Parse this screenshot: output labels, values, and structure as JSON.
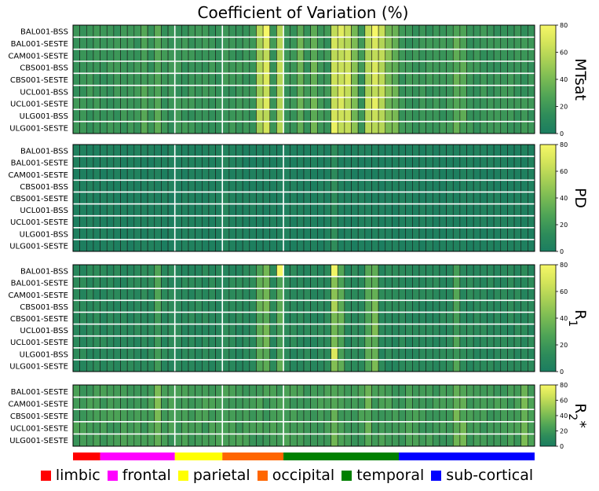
{
  "chart_data": {
    "type": "heatmap",
    "title": "Coefficient of Variation (%)",
    "n_regions": 68,
    "colormap": [
      "#1b7d60",
      "#2e8c5a",
      "#4da356",
      "#78ba54",
      "#a6cf55",
      "#d3e45a",
      "#f6f767"
    ],
    "colorbar": {
      "min": 0,
      "max": 80,
      "ticks": [
        "0",
        "20",
        "40",
        "60",
        "80"
      ]
    },
    "region_groups": [
      {
        "name": "limbic",
        "color": "#ff0000",
        "start": 0,
        "count": 4
      },
      {
        "name": "frontal",
        "color": "#ff00ff",
        "start": 4,
        "count": 11
      },
      {
        "name": "parietal",
        "color": "#ffff00",
        "start": 15,
        "count": 7
      },
      {
        "name": "occipital",
        "color": "#ff6600",
        "start": 22,
        "count": 9
      },
      {
        "name": "temporal",
        "color": "#008000",
        "start": 31,
        "count": 17
      },
      {
        "name": "sub-cortical",
        "color": "#0000ff",
        "start": 48,
        "count": 20
      }
    ],
    "white_column_separators": [
      15,
      22,
      31
    ],
    "panels": [
      {
        "label": "MTsat",
        "rows": [
          "BAL001-BSS",
          "BAL001-SESTE",
          "CAM001-SESTE",
          "CBS001-BSS",
          "CBS001-SESTE",
          "UCL001-BSS",
          "UCL001-SESTE",
          "ULG001-BSS",
          "ULG001-SESTE"
        ],
        "base_value": 18,
        "noise": 4,
        "high_values": [
          {
            "col": 27,
            "value": 55
          },
          {
            "col": 28,
            "value": 65
          },
          {
            "col": 30,
            "value": 58
          },
          {
            "col": 38,
            "value": 62
          },
          {
            "col": 39,
            "value": 66
          },
          {
            "col": 40,
            "value": 60
          },
          {
            "col": 41,
            "value": 42
          },
          {
            "col": 43,
            "value": 58
          },
          {
            "col": 44,
            "value": 64
          },
          {
            "col": 45,
            "value": 60
          },
          {
            "col": 46,
            "value": 40
          },
          {
            "col": 33,
            "value": 35
          },
          {
            "col": 35,
            "value": 33
          },
          {
            "col": 47,
            "value": 35
          },
          {
            "col": 12,
            "value": 28
          },
          {
            "col": 10,
            "value": 26
          },
          {
            "col": 56,
            "value": 30
          },
          {
            "col": 57,
            "value": 28
          }
        ],
        "cell_highs": [
          {
            "row": 0,
            "col": 28,
            "value": 80
          },
          {
            "row": 0,
            "col": 44,
            "value": 80
          },
          {
            "row": 0,
            "col": 39,
            "value": 72
          },
          {
            "row": 8,
            "col": 38,
            "value": 76
          },
          {
            "row": 6,
            "col": 44,
            "value": 74
          },
          {
            "row": 4,
            "col": 40,
            "value": 70
          }
        ]
      },
      {
        "label": "PD",
        "rows": [
          "BAL001-BSS",
          "BAL001-SESTE",
          "CAM001-SESTE",
          "CBS001-BSS",
          "CBS001-SESTE",
          "UCL001-BSS",
          "UCL001-SESTE",
          "ULG001-BSS",
          "ULG001-SESTE"
        ],
        "base_value": 3,
        "noise": 2,
        "high_values": [
          {
            "col": 38,
            "value": 12
          },
          {
            "col": 22,
            "value": 7
          }
        ],
        "cell_highs": []
      },
      {
        "label": "R1",
        "rows": [
          "BAL001-BSS",
          "BAL001-SESTE",
          "CAM001-SESTE",
          "CBS001-BSS",
          "CBS001-SESTE",
          "UCL001-BSS",
          "UCL001-SESTE",
          "ULG001-BSS",
          "ULG001-SESTE"
        ],
        "base_value": 10,
        "noise": 4,
        "high_values": [
          {
            "col": 27,
            "value": 30
          },
          {
            "col": 28,
            "value": 34
          },
          {
            "col": 30,
            "value": 28
          },
          {
            "col": 38,
            "value": 42
          },
          {
            "col": 39,
            "value": 30
          },
          {
            "col": 43,
            "value": 30
          },
          {
            "col": 44,
            "value": 36
          },
          {
            "col": 12,
            "value": 24
          },
          {
            "col": 56,
            "value": 24
          }
        ],
        "cell_highs": [
          {
            "row": 0,
            "col": 30,
            "value": 80
          },
          {
            "row": 0,
            "col": 38,
            "value": 78
          },
          {
            "row": 7,
            "col": 38,
            "value": 70
          },
          {
            "row": 3,
            "col": 38,
            "value": 55
          }
        ]
      },
      {
        "label": "R2*",
        "rows": [
          "BAL001-SESTE",
          "CAM001-SESTE",
          "CBS001-SESTE",
          "UCL001-SESTE",
          "ULG001-SESTE"
        ],
        "base_value": 22,
        "noise": 5,
        "high_values": [
          {
            "col": 12,
            "value": 36
          },
          {
            "col": 38,
            "value": 34
          },
          {
            "col": 43,
            "value": 32
          },
          {
            "col": 56,
            "value": 34
          },
          {
            "col": 57,
            "value": 32
          },
          {
            "col": 66,
            "value": 36
          }
        ],
        "cell_highs": []
      }
    ]
  }
}
